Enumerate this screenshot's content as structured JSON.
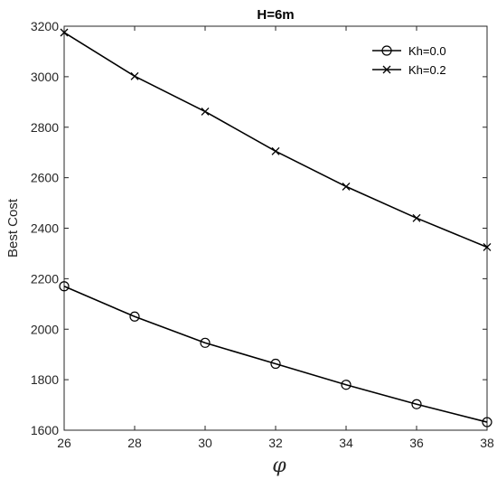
{
  "chart_data": {
    "type": "line",
    "title": "H=6m",
    "xlabel": "φ",
    "ylabel": "Best Cost",
    "x": [
      26,
      28,
      30,
      32,
      34,
      36,
      38
    ],
    "xlim": [
      26,
      38
    ],
    "ylim": [
      1600,
      3200
    ],
    "xticks": [
      26,
      28,
      30,
      32,
      34,
      36,
      38
    ],
    "yticks": [
      1600,
      1800,
      2000,
      2200,
      2400,
      2600,
      2800,
      3000,
      3200
    ],
    "grid": false,
    "legend_position": "top-right",
    "series": [
      {
        "name": "Kh=0.0",
        "marker": "circle",
        "color": "#000000",
        "values": [
          2170,
          2050,
          1946,
          1863,
          1780,
          1703,
          1632
        ]
      },
      {
        "name": "Kh=0.2",
        "marker": "x",
        "color": "#000000",
        "values": [
          3175,
          3002,
          2862,
          2705,
          2565,
          2440,
          2325
        ]
      }
    ]
  }
}
